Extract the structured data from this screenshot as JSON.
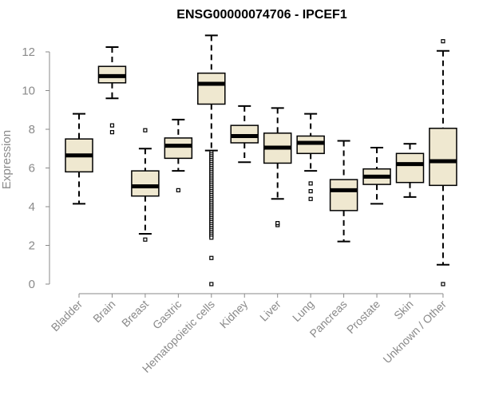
{
  "chart_data": {
    "type": "boxplot",
    "title": "ENSG00000074706 - IPCEF1",
    "xlabel": "",
    "ylabel": "Expression",
    "ylim": [
      0,
      13
    ],
    "yticks": [
      0,
      2,
      4,
      6,
      8,
      10,
      12
    ],
    "grid": false,
    "colors": {
      "box_fill": "#efe8d0",
      "stroke": "#000000",
      "axis": "#8a8a8a"
    },
    "categories": [
      "Bladder",
      "Brain",
      "Breast",
      "Gastric",
      "Hematopoietic cells",
      "Kidney",
      "Liver",
      "Lung",
      "Pancreas",
      "Prostate",
      "Skin",
      "Unknown / Other"
    ],
    "boxes": [
      {
        "name": "Bladder",
        "whisker_low": 4.15,
        "q1": 5.8,
        "median": 6.65,
        "q3": 7.5,
        "whisker_high": 8.8,
        "outliers": []
      },
      {
        "name": "Brain",
        "whisker_low": 9.6,
        "q1": 10.4,
        "median": 10.75,
        "q3": 11.25,
        "whisker_high": 12.25,
        "outliers": [
          8.2,
          7.85
        ]
      },
      {
        "name": "Breast",
        "whisker_low": 2.6,
        "q1": 4.55,
        "median": 5.05,
        "q3": 5.85,
        "whisker_high": 7.0,
        "outliers": [
          2.3,
          7.95
        ]
      },
      {
        "name": "Gastric",
        "whisker_low": 5.85,
        "q1": 6.5,
        "median": 7.15,
        "q3": 7.55,
        "whisker_high": 8.5,
        "outliers": [
          4.85
        ]
      },
      {
        "name": "Hematopoietic cells",
        "whisker_low": 6.9,
        "q1": 9.3,
        "median": 10.35,
        "q3": 10.9,
        "whisker_high": 12.85,
        "outliers": [
          6.8,
          6.7,
          6.6,
          6.5,
          6.4,
          6.3,
          6.2,
          6.1,
          6.0,
          5.9,
          5.8,
          5.7,
          5.6,
          5.5,
          5.4,
          5.3,
          5.2,
          5.1,
          5.0,
          4.9,
          4.8,
          4.7,
          4.6,
          4.5,
          4.4,
          4.3,
          4.2,
          4.1,
          4.0,
          3.9,
          3.8,
          3.7,
          3.6,
          3.5,
          3.4,
          3.3,
          3.2,
          3.1,
          3.0,
          2.9,
          2.8,
          2.7,
          2.6,
          2.5,
          2.4,
          1.35,
          0.0
        ]
      },
      {
        "name": "Kidney",
        "whisker_low": 6.3,
        "q1": 7.3,
        "median": 7.65,
        "q3": 8.2,
        "whisker_high": 9.2,
        "outliers": []
      },
      {
        "name": "Liver",
        "whisker_low": 4.4,
        "q1": 6.25,
        "median": 7.05,
        "q3": 7.8,
        "whisker_high": 9.1,
        "outliers": [
          3.05,
          3.15
        ]
      },
      {
        "name": "Lung",
        "whisker_low": 5.85,
        "q1": 6.75,
        "median": 7.3,
        "q3": 7.65,
        "whisker_high": 8.8,
        "outliers": [
          5.2,
          4.8,
          4.4
        ]
      },
      {
        "name": "Pancreas",
        "whisker_low": 2.2,
        "q1": 3.8,
        "median": 4.85,
        "q3": 5.4,
        "whisker_high": 7.4,
        "outliers": []
      },
      {
        "name": "Prostate",
        "whisker_low": 4.15,
        "q1": 5.15,
        "median": 5.55,
        "q3": 5.95,
        "whisker_high": 7.05,
        "outliers": []
      },
      {
        "name": "Skin",
        "whisker_low": 4.5,
        "q1": 5.25,
        "median": 6.2,
        "q3": 6.75,
        "whisker_high": 7.25,
        "outliers": []
      },
      {
        "name": "Unknown / Other",
        "whisker_low": 1.0,
        "q1": 5.1,
        "median": 6.35,
        "q3": 8.05,
        "whisker_high": 12.05,
        "outliers": [
          12.55,
          0.0
        ]
      }
    ]
  }
}
